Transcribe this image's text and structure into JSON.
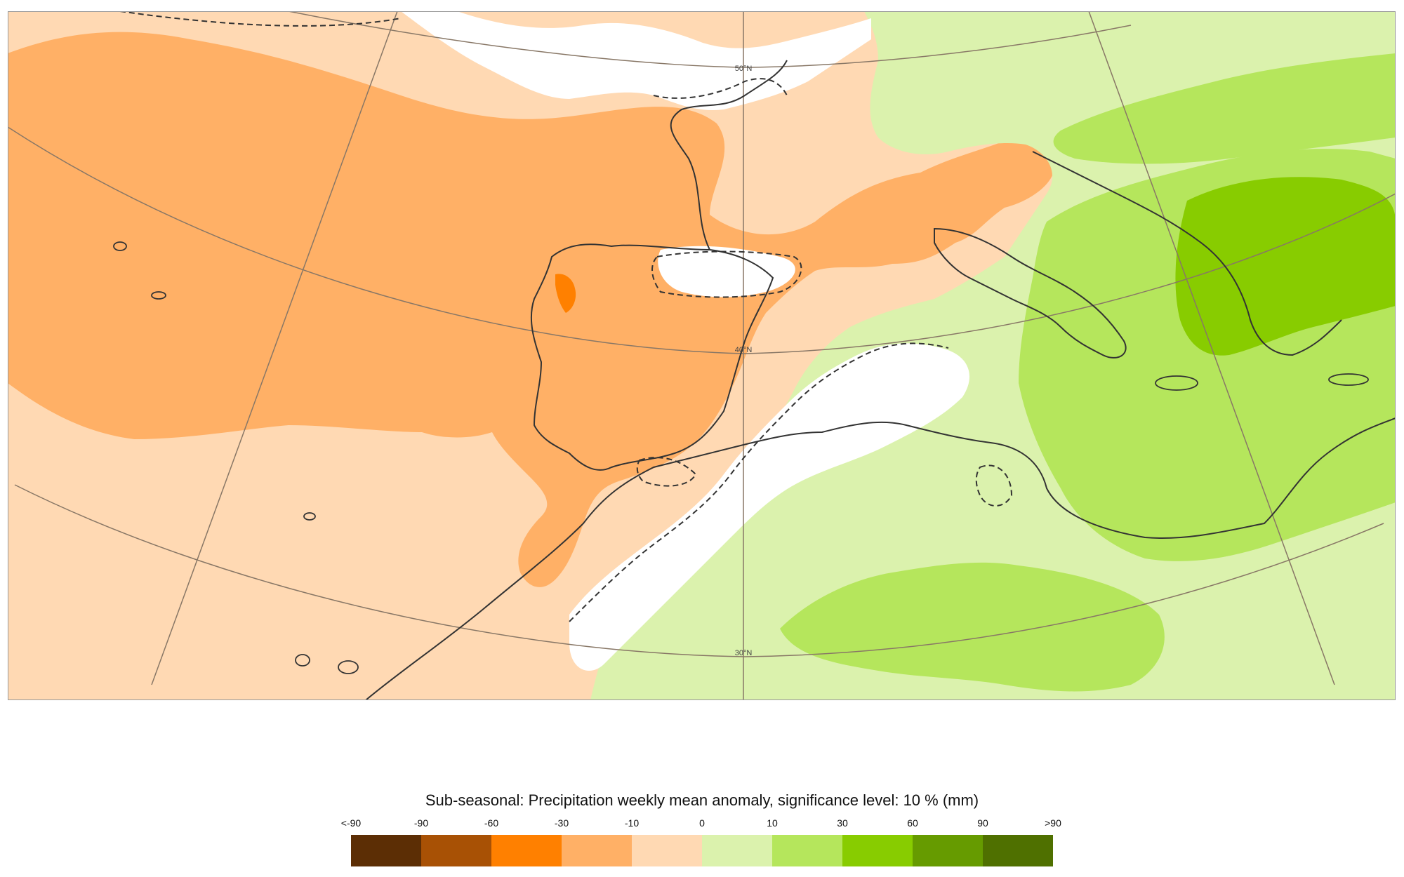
{
  "map": {
    "lat_labels": [
      "50°N",
      "40°N",
      "30°N"
    ]
  },
  "legend": {
    "title": "Sub-seasonal: Precipitation weekly mean anomaly, significance level: 10 % (mm)",
    "ticks": [
      "<-90",
      "-90",
      "-60",
      "-30",
      "-10",
      "0",
      "10",
      "30",
      "60",
      "90",
      ">90"
    ],
    "colors": [
      "#5c2e05",
      "#a85105",
      "#ff8000",
      "#ffb066",
      "#ffd9b3",
      "#dbf2ad",
      "#b5e65c",
      "#88cc00",
      "#669b00",
      "#4f7000"
    ]
  }
}
